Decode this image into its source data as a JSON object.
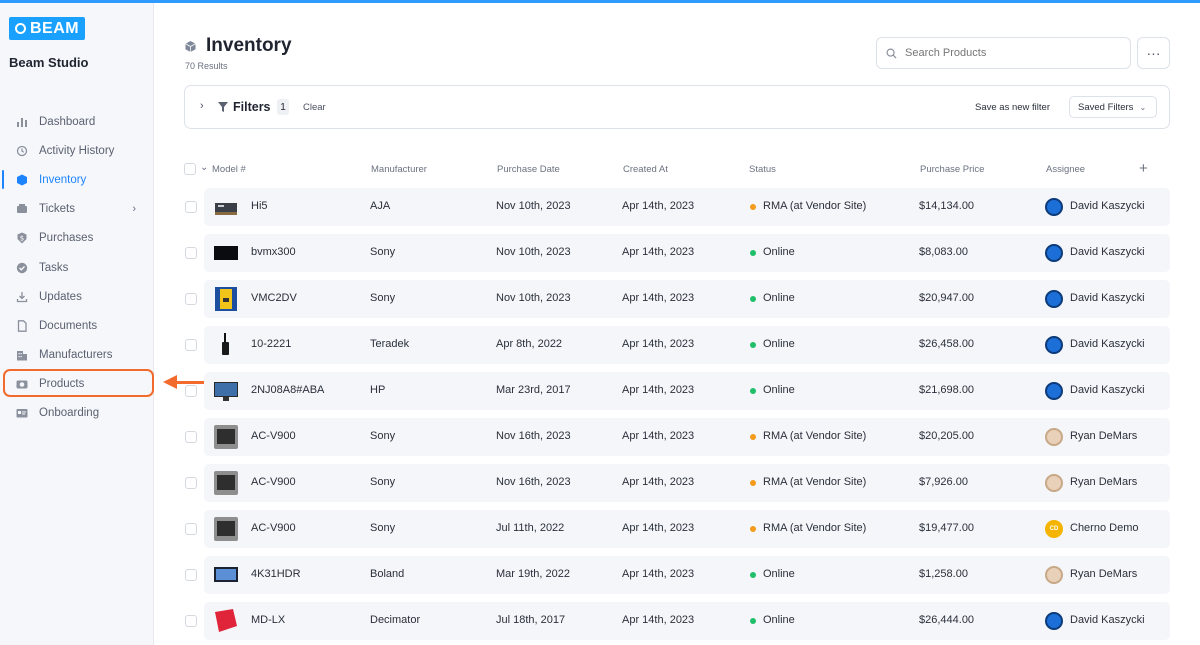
{
  "brand": {
    "logo_text": "BEAM",
    "studio_name": "Beam Studio"
  },
  "sidebar": {
    "items": [
      {
        "label": "Dashboard",
        "icon": "bar-chart-icon"
      },
      {
        "label": "Activity History",
        "icon": "history-icon"
      },
      {
        "label": "Inventory",
        "icon": "cube-icon",
        "active": true
      },
      {
        "label": "Tickets",
        "icon": "ticket-icon",
        "has_submenu": true
      },
      {
        "label": "Purchases",
        "icon": "dollar-badge-icon"
      },
      {
        "label": "Tasks",
        "icon": "check-circle-icon"
      },
      {
        "label": "Updates",
        "icon": "download-icon"
      },
      {
        "label": "Documents",
        "icon": "document-icon"
      },
      {
        "label": "Manufacturers",
        "icon": "building-icon"
      },
      {
        "label": "Products",
        "icon": "camera-icon",
        "highlighted": true
      },
      {
        "label": "Onboarding",
        "icon": "id-card-icon"
      }
    ]
  },
  "header": {
    "title": "Inventory",
    "results": "70 Results"
  },
  "search": {
    "placeholder": "Search Products"
  },
  "filters": {
    "label": "Filters",
    "count": "1",
    "clear_label": "Clear",
    "save_label": "Save as new filter",
    "saved_label": "Saved Filters"
  },
  "table": {
    "columns": [
      "Model #",
      "Manufacturer",
      "Purchase Date",
      "Created At",
      "Status",
      "Purchase Price",
      "Assignee"
    ],
    "rows": [
      {
        "model": "Hi5",
        "manufacturer": "AJA",
        "purchase_date": "Nov 10th, 2023",
        "created_at": "Apr 14th, 2023",
        "status": "RMA (at Vendor Site)",
        "status_type": "rma",
        "price": "$14,134.00",
        "assignee": "David Kaszycki",
        "avatar": "david"
      },
      {
        "model": "bvmx300",
        "manufacturer": "Sony",
        "purchase_date": "Nov 10th, 2023",
        "created_at": "Apr 14th, 2023",
        "status": "Online",
        "status_type": "online",
        "price": "$8,083.00",
        "assignee": "David Kaszycki",
        "avatar": "david"
      },
      {
        "model": "VMC2DV",
        "manufacturer": "Sony",
        "purchase_date": "Nov 10th, 2023",
        "created_at": "Apr 14th, 2023",
        "status": "Online",
        "status_type": "online",
        "price": "$20,947.00",
        "assignee": "David Kaszycki",
        "avatar": "david"
      },
      {
        "model": "10-2221",
        "manufacturer": "Teradek",
        "purchase_date": "Apr 8th, 2022",
        "created_at": "Apr 14th, 2023",
        "status": "Online",
        "status_type": "online",
        "price": "$26,458.00",
        "assignee": "David Kaszycki",
        "avatar": "david"
      },
      {
        "model": "2NJ08A8#ABA",
        "manufacturer": "HP",
        "purchase_date": "Mar 23rd, 2017",
        "created_at": "Apr 14th, 2023",
        "status": "Online",
        "status_type": "online",
        "price": "$21,698.00",
        "assignee": "David Kaszycki",
        "avatar": "david"
      },
      {
        "model": "AC-V900",
        "manufacturer": "Sony",
        "purchase_date": "Nov 16th, 2023",
        "created_at": "Apr 14th, 2023",
        "status": "RMA (at Vendor Site)",
        "status_type": "rma",
        "price": "$20,205.00",
        "assignee": "Ryan DeMars",
        "avatar": "ryan"
      },
      {
        "model": "AC-V900",
        "manufacturer": "Sony",
        "purchase_date": "Nov 16th, 2023",
        "created_at": "Apr 14th, 2023",
        "status": "RMA (at Vendor Site)",
        "status_type": "rma",
        "price": "$7,926.00",
        "assignee": "Ryan DeMars",
        "avatar": "ryan"
      },
      {
        "model": "AC-V900",
        "manufacturer": "Sony",
        "purchase_date": "Jul 11th, 2022",
        "created_at": "Apr 14th, 2023",
        "status": "RMA (at Vendor Site)",
        "status_type": "rma",
        "price": "$19,477.00",
        "assignee": "Cherno Demo",
        "avatar": "cd",
        "avatar_initials": "CD"
      },
      {
        "model": "4K31HDR",
        "manufacturer": "Boland",
        "purchase_date": "Mar 19th, 2022",
        "created_at": "Apr 14th, 2023",
        "status": "Online",
        "status_type": "online",
        "price": "$1,258.00",
        "assignee": "Ryan DeMars",
        "avatar": "ryan"
      },
      {
        "model": "MD-LX",
        "manufacturer": "Decimator",
        "purchase_date": "Jul 18th, 2017",
        "created_at": "Apr 14th, 2023",
        "status": "Online",
        "status_type": "online",
        "price": "$26,444.00",
        "assignee": "David Kaszycki",
        "avatar": "david"
      }
    ]
  },
  "colors": {
    "accent": "#1c84ff",
    "online": "#1fbf6a",
    "rma": "#f59a1b",
    "highlight": "#f26b2c"
  }
}
